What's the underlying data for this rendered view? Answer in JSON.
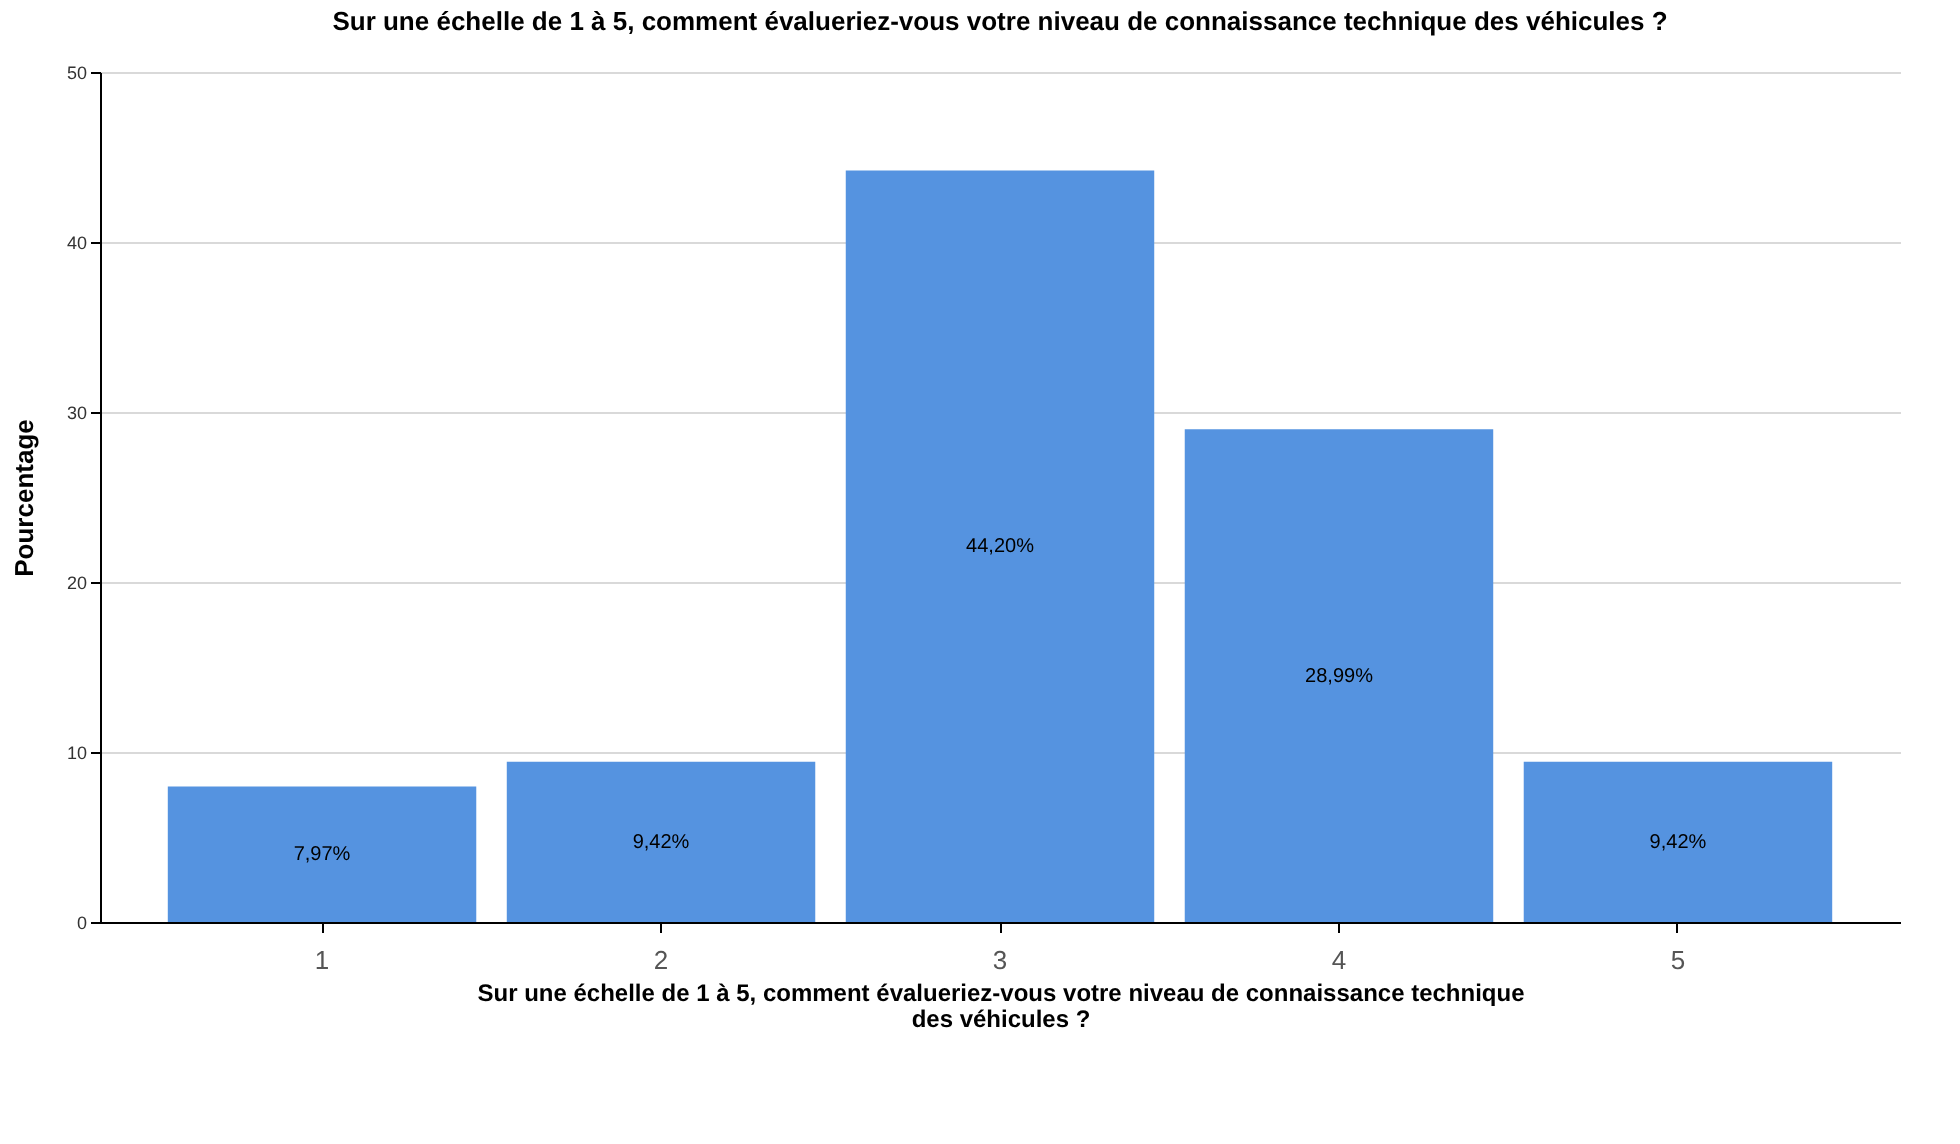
{
  "chart_data": {
    "type": "bar",
    "title": "Sur une échelle de 1 à 5, comment évalueriez-vous votre niveau de connaissance technique des véhicules ?",
    "xlabel": "Sur une échelle de 1 à 5, comment évalueriez-vous votre niveau de connaissance technique des véhicules ?",
    "ylabel": "Pourcentage",
    "categories": [
      "1",
      "2",
      "3",
      "4",
      "5"
    ],
    "values": [
      7.97,
      9.42,
      44.2,
      28.99,
      9.42
    ],
    "value_labels": [
      "7,97%",
      "9,42%",
      "44,20%",
      "28,99%",
      "9,42%"
    ],
    "color": "#5593e0",
    "ylim": [
      0,
      50
    ],
    "yticks": [
      0,
      10,
      20,
      30,
      40,
      50
    ],
    "grid": "y"
  }
}
